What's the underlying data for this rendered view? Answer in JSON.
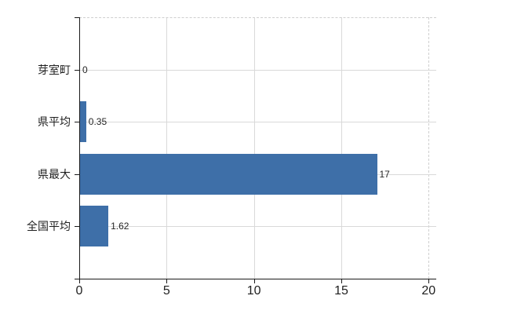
{
  "chart_data": {
    "type": "bar",
    "orientation": "horizontal",
    "categories": [
      "芽室町",
      "県平均",
      "県最大",
      "全国平均"
    ],
    "values": [
      0,
      0.35,
      17,
      1.62
    ],
    "value_labels": [
      "0",
      "0.35",
      "17",
      "1.62"
    ],
    "xticks": [
      0,
      5,
      10,
      15,
      20
    ],
    "xtick_labels": [
      "0",
      "5",
      "10",
      "15",
      "20"
    ],
    "xlim": [
      0,
      20.45
    ],
    "grid": "on",
    "legend": "none",
    "title": "",
    "bar_color": "#3e6fa8",
    "grid_color": "#d9d9d9",
    "dashed_border_color": "#cfcfcf",
    "axis_color": "#1a1a1a",
    "text_color": "#1f1f1f",
    "background_color": "#ffffff"
  }
}
